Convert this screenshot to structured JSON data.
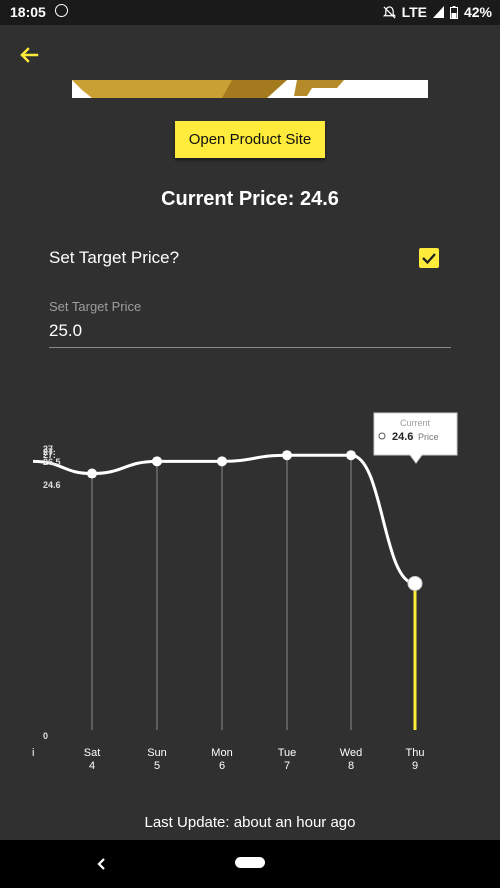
{
  "status": {
    "time": "18:05",
    "network": "LTE",
    "battery": "42%"
  },
  "product": {
    "open_site_label": "Open Product Site"
  },
  "price": {
    "current_label": "Current Price: 24.6"
  },
  "target": {
    "question": "Set Target Price?",
    "checked": true,
    "field_label": "Set Target Price",
    "field_value": "25.0"
  },
  "chart_data": {
    "type": "line",
    "categories": [
      "",
      "Sat 4",
      "Sun 5",
      "Mon 6",
      "Tue 7",
      "Wed 8",
      "Thu 9"
    ],
    "x_labels": [
      {
        "day": "i",
        "date": ""
      },
      {
        "day": "Sat",
        "date": "4"
      },
      {
        "day": "Sun",
        "date": "5"
      },
      {
        "day": "Mon",
        "date": "6"
      },
      {
        "day": "Tue",
        "date": "7"
      },
      {
        "day": "Wed",
        "date": "8"
      },
      {
        "day": "Thu",
        "date": "9"
      }
    ],
    "series": [
      {
        "values": [
          26.6,
          26.4,
          26.6,
          26.6,
          26.7,
          26.7,
          24.6
        ]
      }
    ],
    "y_tick_labels": [
      "27.",
      "27.",
      "27.",
      "26.5",
      "24.6",
      "0"
    ],
    "ylim": [
      0,
      27
    ],
    "tooltip": {
      "title": "Current",
      "value": "24.6",
      "unit": "Price"
    },
    "line_color": "#ffffff",
    "highlight_color": "#ffeb3b"
  },
  "footer": {
    "last_update": "Last Update: about an hour ago"
  },
  "colors": {
    "accent": "#ffeb3b",
    "background": "#303030"
  }
}
